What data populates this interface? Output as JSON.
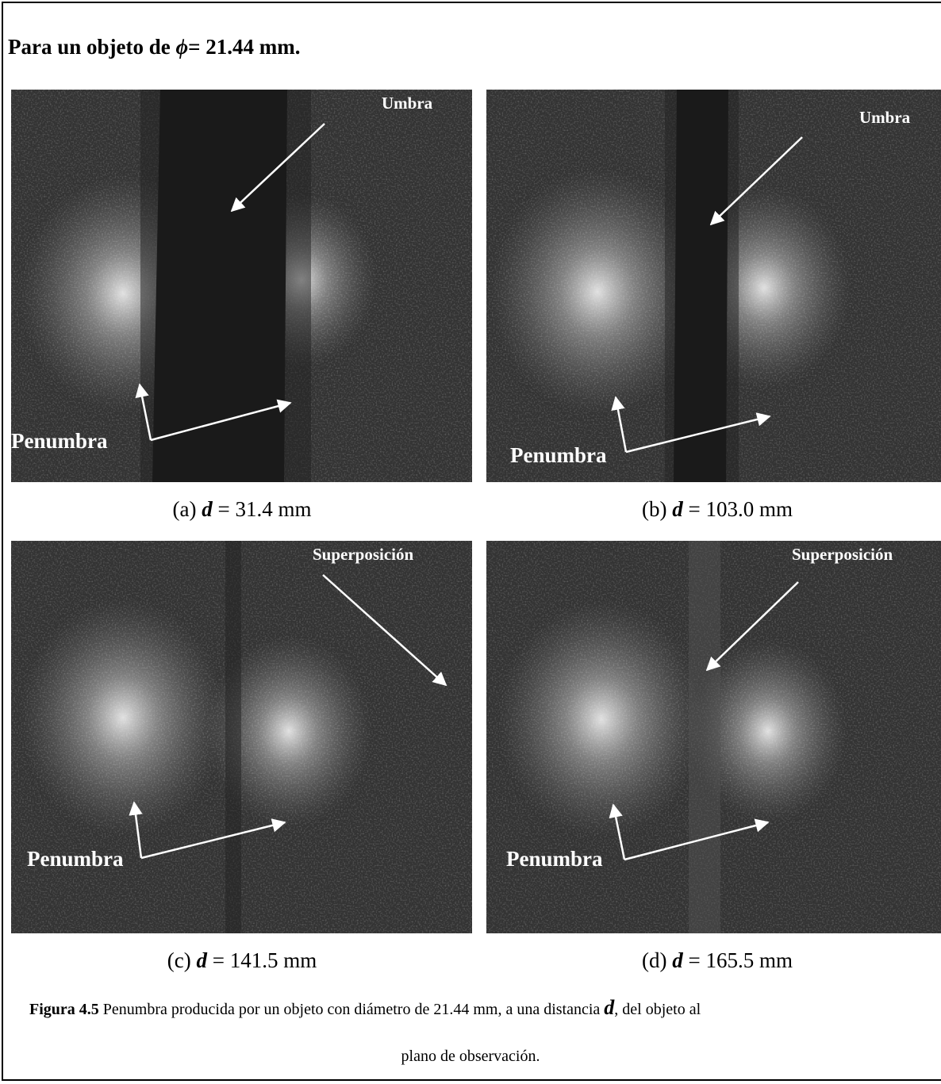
{
  "heading": {
    "prefix": "Para un objeto de",
    "symbol": "ϕ",
    "suffix": "= 21.44 mm."
  },
  "panels": [
    {
      "labels": {
        "top": "Umbra",
        "bottom": "Penumbra"
      },
      "caption": {
        "letter": "(a)",
        "var": "d",
        "value": "= 31.4 mm"
      }
    },
    {
      "labels": {
        "top": "Umbra",
        "bottom": "Penumbra"
      },
      "caption": {
        "letter": "(b)",
        "var": "d",
        "value": "= 103.0 mm"
      }
    },
    {
      "labels": {
        "top": "Superposición",
        "bottom": "Penumbra"
      },
      "caption": {
        "letter": "(c)",
        "var": "d",
        "value": "= 141.5 mm"
      }
    },
    {
      "labels": {
        "top": "Superposición",
        "bottom": "Penumbra"
      },
      "caption": {
        "letter": "(d)",
        "var": "d",
        "value": "= 165.5 mm"
      }
    }
  ],
  "figure_caption": {
    "label": "Figura 4.5",
    "text_before": "Penumbra producida por un objeto con diámetro de 21.44 mm, a una distancia",
    "var": "d",
    "text_after": ", del objeto al",
    "line2": "plano de observación."
  }
}
